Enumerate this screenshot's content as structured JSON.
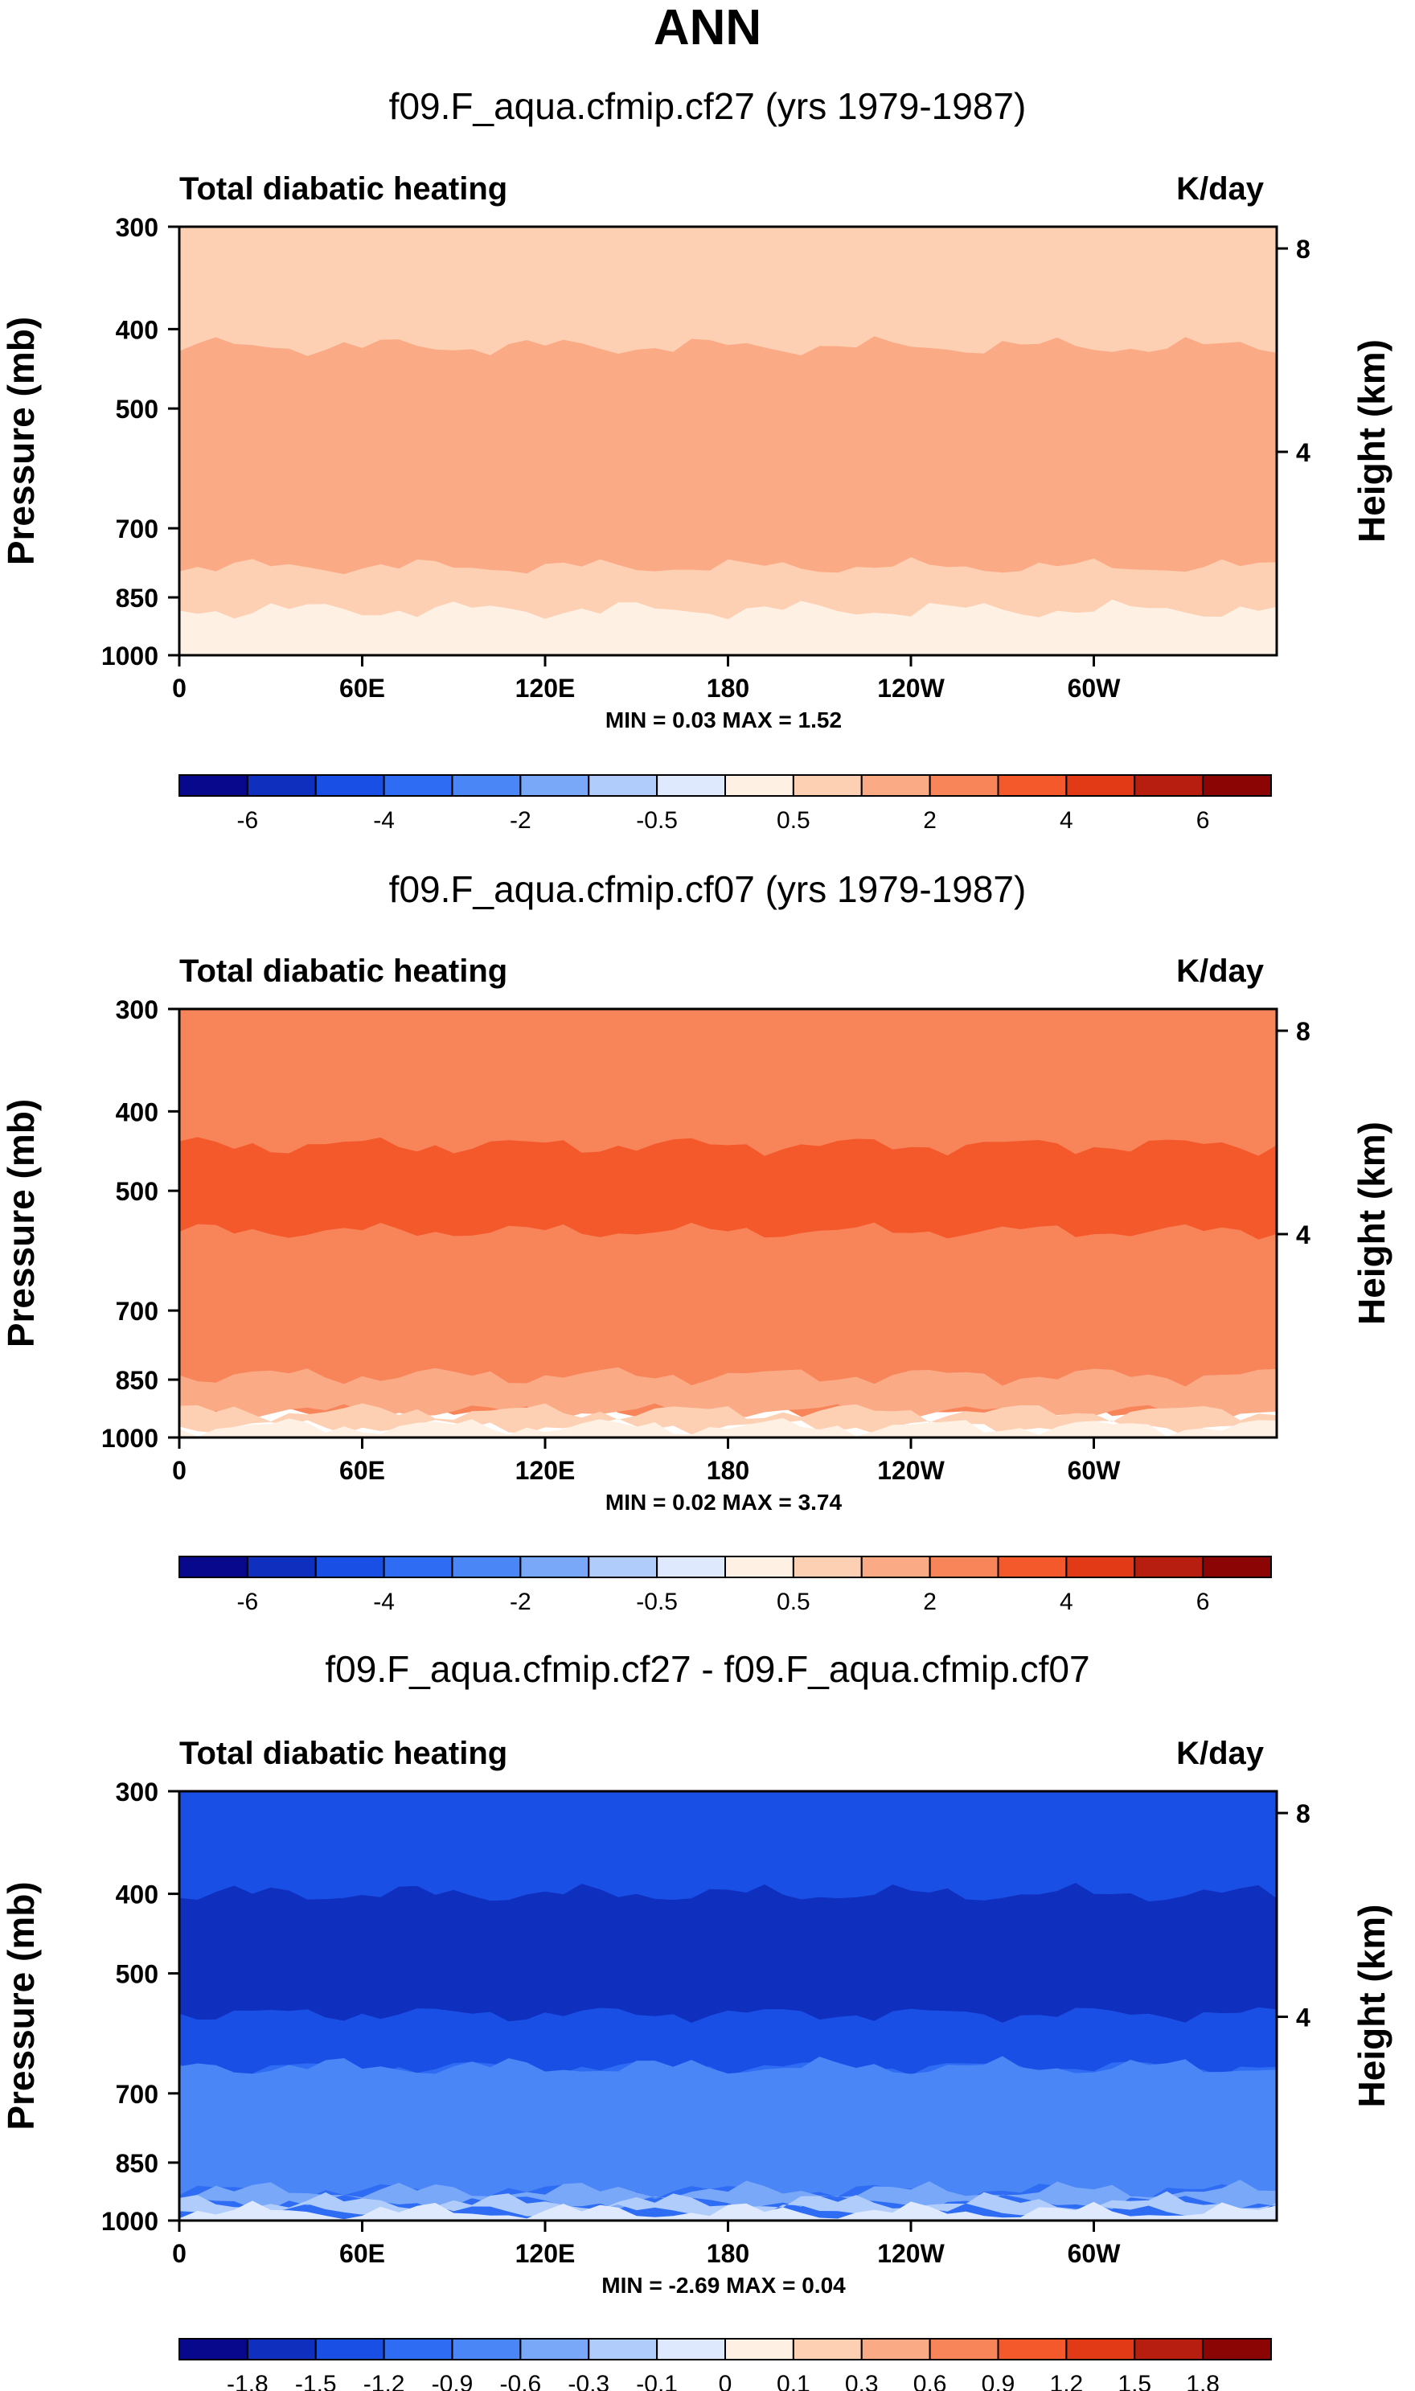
{
  "chart_data": {
    "type": "heatmap",
    "title": "ANN",
    "colors": {
      "absolute": [
        "#08088c",
        "#0f2fbe",
        "#1a4fe6",
        "#2e6cf4",
        "#4a86f6",
        "#7aa8f8",
        "#b0ccfb",
        "#dfe9fd",
        "#fef0e3",
        "#fdcfb3",
        "#fbaa86",
        "#f8845a",
        "#f4592b",
        "#e23a17",
        "#b81e0f",
        "#8b0505"
      ],
      "difference": [
        "#08088c",
        "#0f2fbe",
        "#1a4fe6",
        "#2e6cf4",
        "#4a86f6",
        "#7aa8f8",
        "#b0ccfb",
        "#dfe9fd",
        "#fef0e3",
        "#fdcfb3",
        "#fbaa86",
        "#f8845a",
        "#f4592b",
        "#e23a17",
        "#b81e0f",
        "#8b0505"
      ]
    },
    "panels": [
      {
        "id": "p1",
        "subtitle": "f09.F_aqua.cfmip.cf27 (yrs 1979-1987)",
        "left_label": "Total diabatic heating",
        "right_label": "K/day",
        "ylabel": "Pressure (mb)",
        "ylabel2": "Height (km)",
        "y_ticks": [
          "300",
          "400",
          "500",
          "700",
          "850",
          "1000"
        ],
        "y_tick_values": [
          300,
          400,
          500,
          700,
          850,
          1000
        ],
        "height_ticks": [
          "8",
          "4"
        ],
        "height_tick_values": [
          8,
          4
        ],
        "x_ticks": [
          "0",
          "60E",
          "120E",
          "180",
          "120W",
          "60W"
        ],
        "x_tick_values": [
          0,
          60,
          120,
          180,
          240,
          300
        ],
        "xlim": [
          0,
          360
        ],
        "ylim": [
          300,
          1000
        ],
        "min_label": "MIN =   0.03  MAX =   1.52",
        "layers": [
          {
            "level": 1,
            "top": 300,
            "bottom": 1000
          },
          {
            "level": 2,
            "top": 420,
            "bottom": 780
          },
          {
            "level": 0,
            "top": 880,
            "bottom": 1000
          }
        ],
        "colorbar_labels": [
          "-6",
          "-4",
          "-2",
          "-0.5",
          "0.5",
          "2",
          "4",
          "6"
        ],
        "colorbar_style": "absolute"
      },
      {
        "id": "p2",
        "subtitle": "f09.F_aqua.cfmip.cf07 (yrs 1979-1987)",
        "left_label": "Total diabatic heating",
        "right_label": "K/day",
        "ylabel": "Pressure (mb)",
        "ylabel2": "Height (km)",
        "y_ticks": [
          "300",
          "400",
          "500",
          "700",
          "850",
          "1000"
        ],
        "y_tick_values": [
          300,
          400,
          500,
          700,
          850,
          1000
        ],
        "height_ticks": [
          "8",
          "4"
        ],
        "height_tick_values": [
          8,
          4
        ],
        "x_ticks": [
          "0",
          "60E",
          "120E",
          "180",
          "120W",
          "60W"
        ],
        "x_tick_values": [
          0,
          60,
          120,
          180,
          240,
          300
        ],
        "xlim": [
          0,
          360
        ],
        "ylim": [
          300,
          1000
        ],
        "min_label": "MIN =   0.02  MAX =   3.74",
        "layers": [
          {
            "level": 3,
            "top": 300,
            "bottom": 930
          },
          {
            "level": 4,
            "top": 440,
            "bottom": 560
          },
          {
            "level": 2,
            "top": 840,
            "bottom": 930
          },
          {
            "level": 1,
            "top": 930,
            "bottom": 970
          },
          {
            "level": 0,
            "top": 970,
            "bottom": 1000
          }
        ],
        "colorbar_labels": [
          "-6",
          "-4",
          "-2",
          "-0.5",
          "0.5",
          "2",
          "4",
          "6"
        ],
        "colorbar_style": "absolute"
      },
      {
        "id": "p3",
        "subtitle": "f09.F_aqua.cfmip.cf27 - f09.F_aqua.cfmip.cf07",
        "left_label": "Total diabatic heating",
        "right_label": "K/day",
        "ylabel": "Pressure (mb)",
        "ylabel2": "Height (km)",
        "y_ticks": [
          "300",
          "400",
          "500",
          "700",
          "850",
          "1000"
        ],
        "y_tick_values": [
          300,
          400,
          500,
          700,
          850,
          1000
        ],
        "height_ticks": [
          "8",
          "4"
        ],
        "height_tick_values": [
          8,
          4
        ],
        "x_ticks": [
          "0",
          "60E",
          "120E",
          "180",
          "120W",
          "60W"
        ],
        "x_tick_values": [
          0,
          60,
          120,
          180,
          240,
          300
        ],
        "xlim": [
          0,
          360
        ],
        "ylim": [
          300,
          1000
        ],
        "min_label": "MIN =  -2.69  MAX =   0.04",
        "layers": [
          {
            "level": 2,
            "top": 300,
            "bottom": 1000
          },
          {
            "level": 1,
            "top": 300,
            "bottom": 650
          },
          {
            "level": 0,
            "top": 400,
            "bottom": 560
          },
          {
            "level": 3,
            "top": 650,
            "bottom": 920
          },
          {
            "level": 4,
            "top": 920,
            "bottom": 950
          },
          {
            "level": 5,
            "top": 950,
            "bottom": 975
          },
          {
            "level": 6,
            "top": 975,
            "bottom": 1000
          }
        ],
        "colorbar_labels": [
          "-1.8",
          "-1.5",
          "-1.2",
          "-0.9",
          "-0.6",
          "-0.3",
          "-0.1",
          "0",
          "0.1",
          "0.3",
          "0.6",
          "0.9",
          "1.2",
          "1.5",
          "1.8"
        ],
        "colorbar_style": "difference"
      }
    ]
  }
}
